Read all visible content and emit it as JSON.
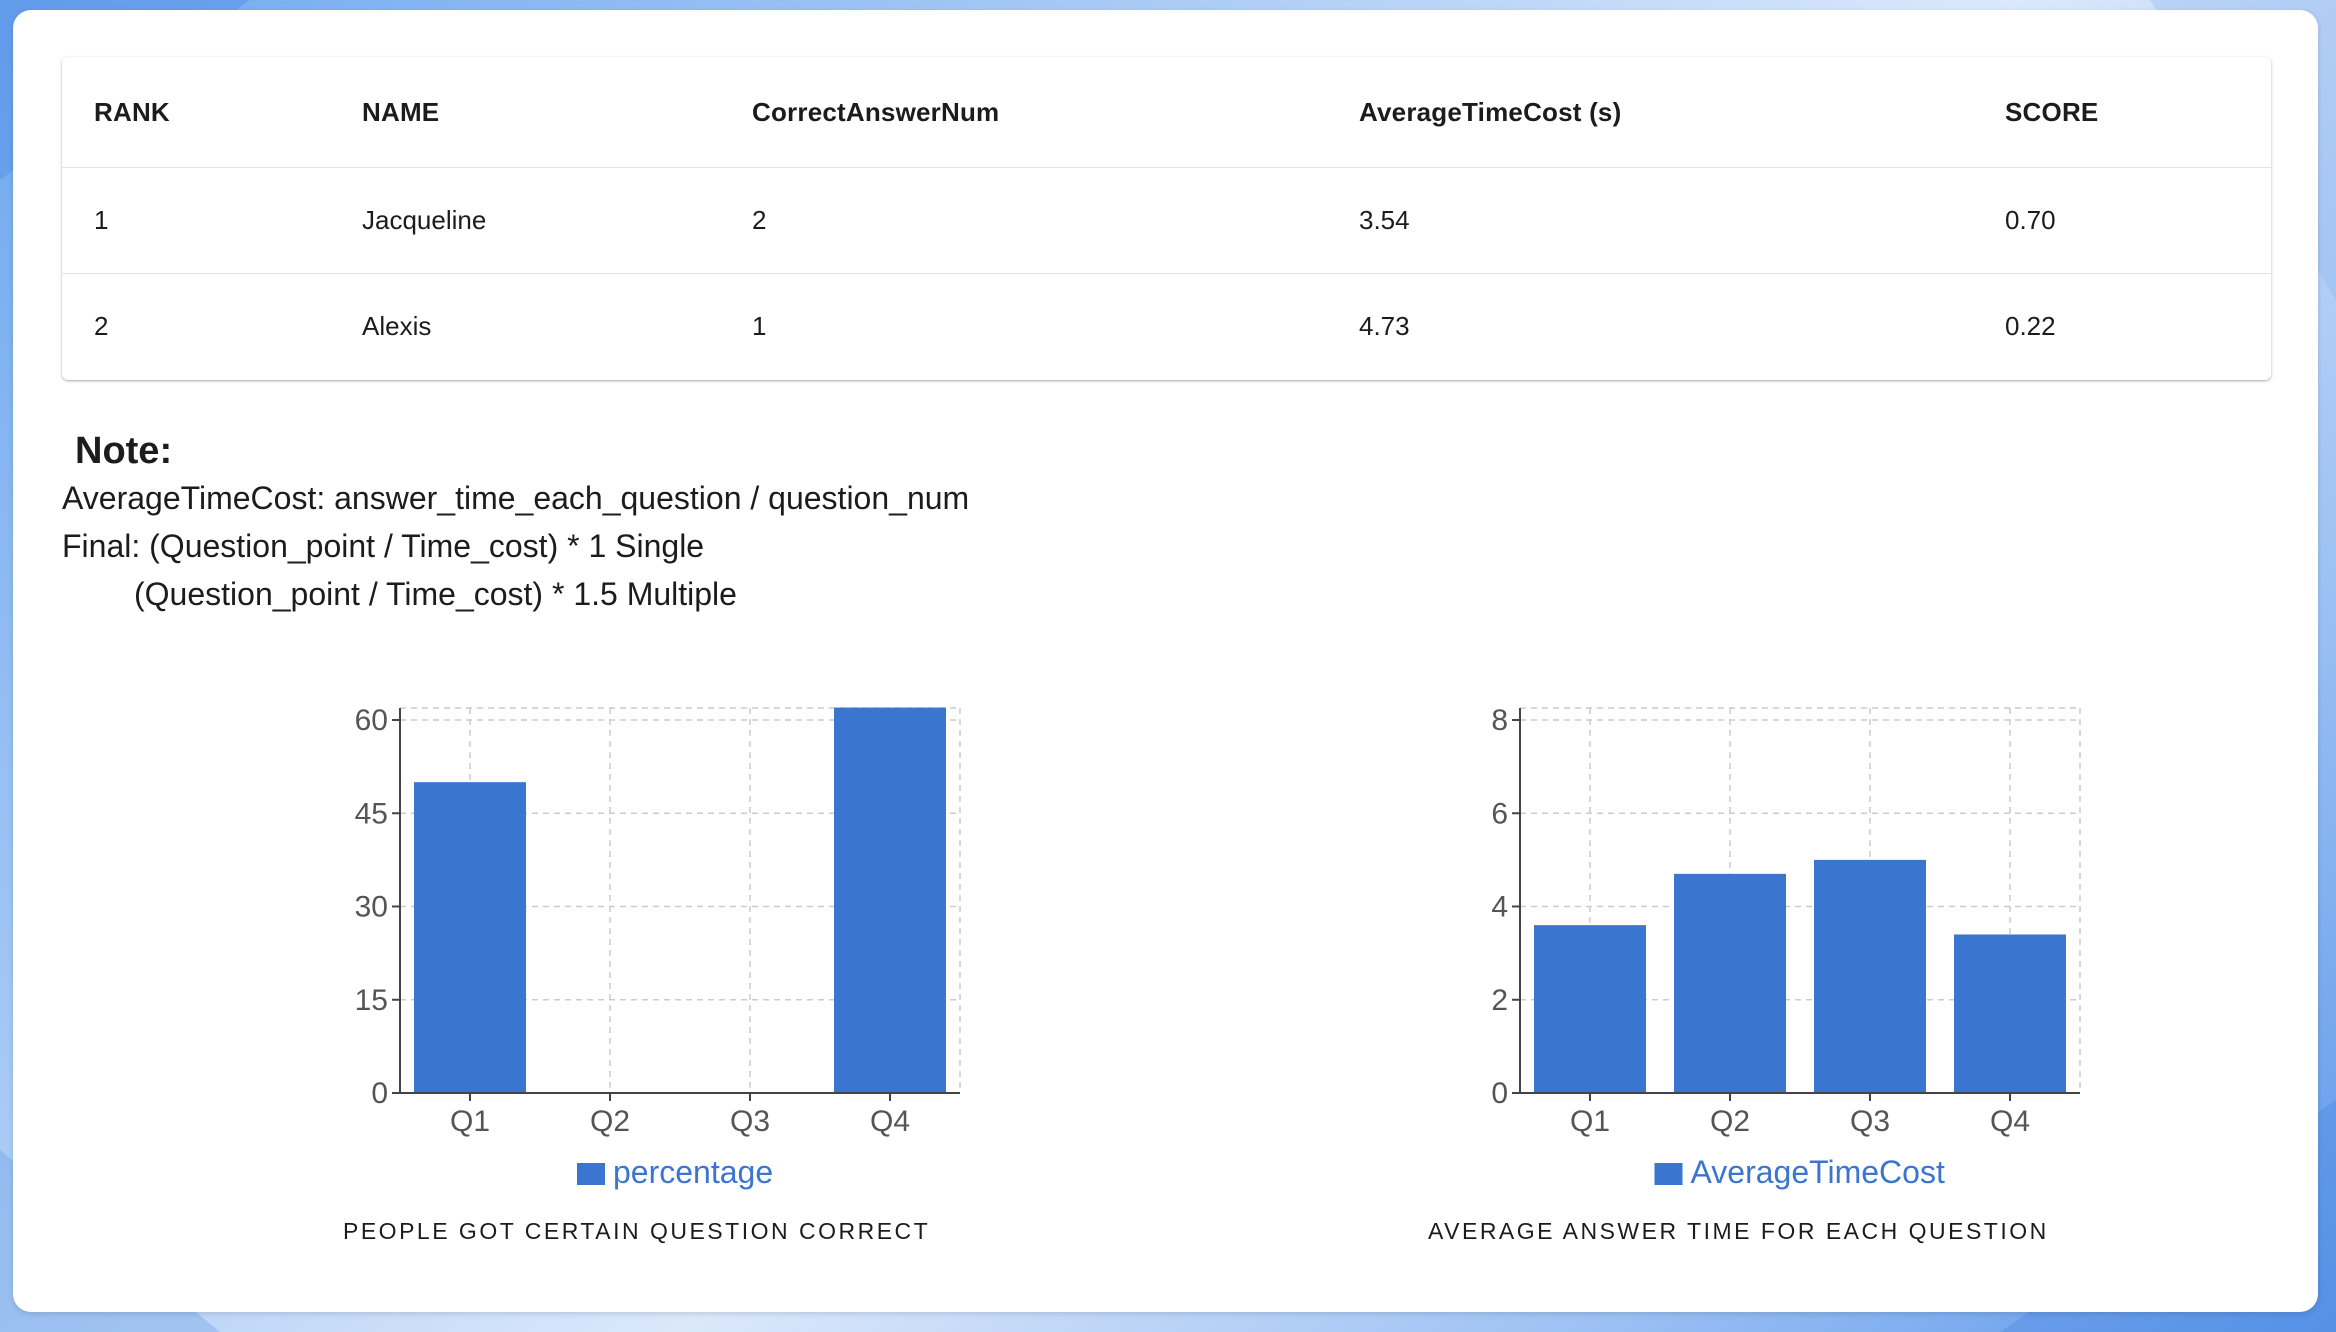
{
  "table": {
    "headers": [
      "RANK",
      "NAME",
      "CorrectAnswerNum",
      "AverageTimeCost (s)",
      "SCORE"
    ],
    "rows": [
      [
        "1",
        "Jacqueline",
        "2",
        "3.54",
        "0.70"
      ],
      [
        "2",
        "Alexis",
        "1",
        "4.73",
        "0.22"
      ]
    ]
  },
  "note": {
    "title": "Note:",
    "line1": "AverageTimeCost: answer_time_each_question / question_num",
    "line2": "Final: (Question_point / Time_cost) * 1 Single",
    "line3": "(Question_point / Time_cost) * 1.5 Multiple"
  },
  "colors": {
    "bar": "#3a76cf",
    "legend_text": "#3a76cf",
    "grid": "#cccccc"
  },
  "chart_data": [
    {
      "type": "bar",
      "categories": [
        "Q1",
        "Q2",
        "Q3",
        "Q4"
      ],
      "series": [
        {
          "name": "percentage",
          "values": [
            50,
            0,
            0,
            62
          ]
        }
      ],
      "yticks": [
        0,
        15,
        30,
        45,
        60
      ],
      "ylim": [
        0,
        60
      ],
      "grid": true,
      "legend_position": "bottom",
      "caption": "PEOPLE GOT CERTAIN QUESTION CORRECT"
    },
    {
      "type": "bar",
      "categories": [
        "Q1",
        "Q2",
        "Q3",
        "Q4"
      ],
      "series": [
        {
          "name": "AverageTimeCost",
          "values": [
            3.6,
            4.7,
            5.0,
            3.4
          ]
        }
      ],
      "yticks": [
        0,
        2,
        4,
        6,
        8
      ],
      "ylim": [
        0,
        8
      ],
      "grid": true,
      "legend_position": "bottom",
      "caption": "AVERAGE ANSWER TIME FOR EACH QUESTION"
    }
  ]
}
